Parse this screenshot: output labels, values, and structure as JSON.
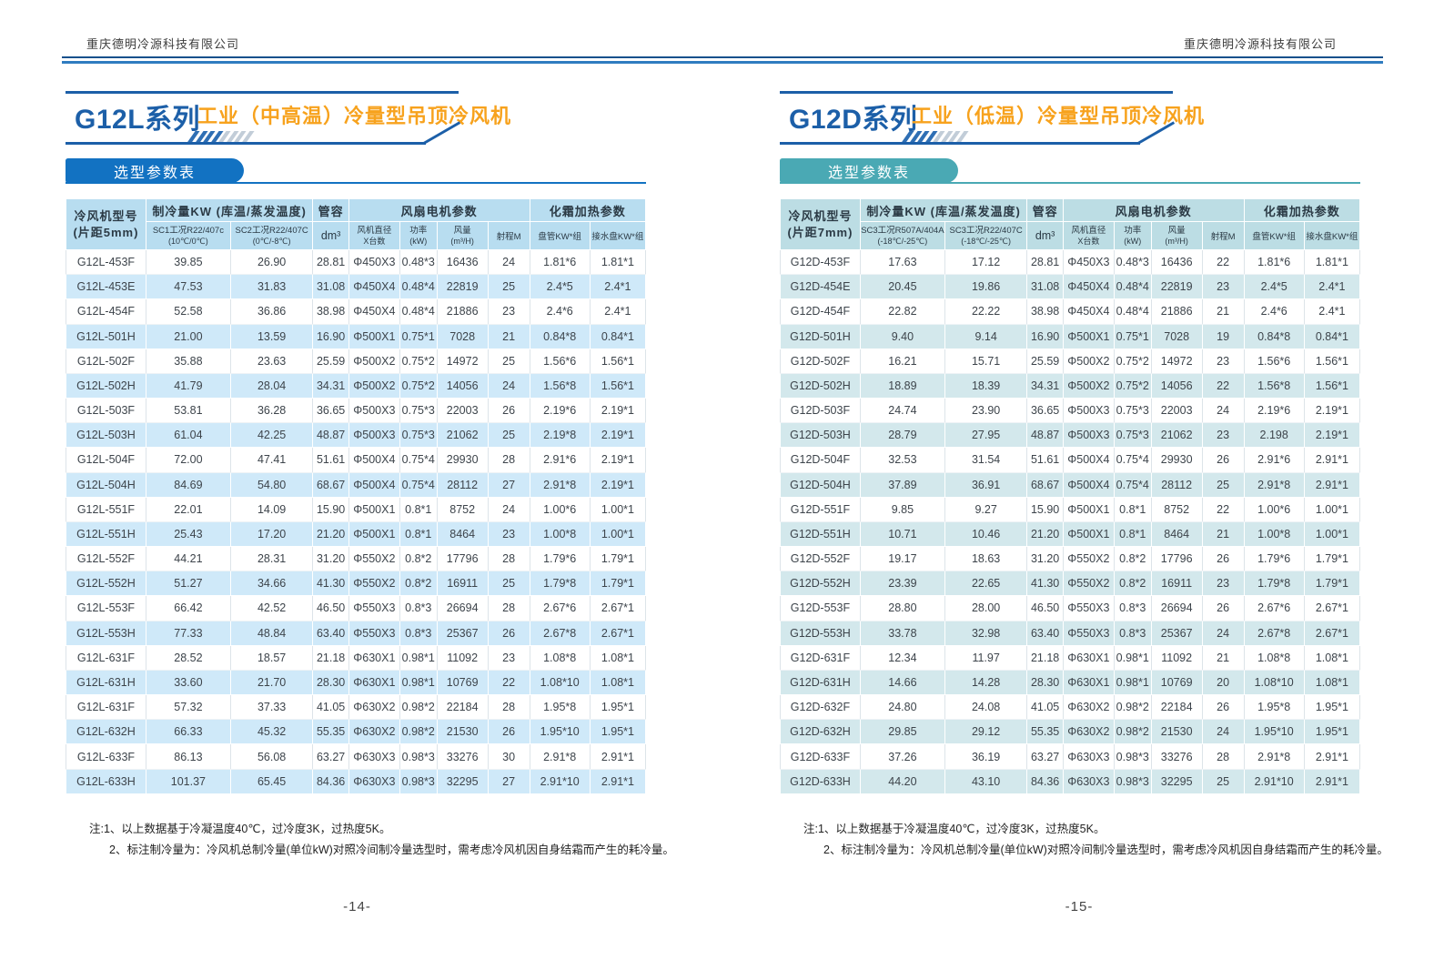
{
  "colors": {
    "brand_blue": "#1c5fa8",
    "brand_orange": "#f7a21d",
    "rule_dark": "#14508c",
    "rule_light": "#2f7cc0"
  },
  "pages": [
    {
      "company": "重庆德明冷源科技有限公司",
      "series": "G12L系列",
      "subtitle": "工业（中高温）冷量型吊顶冷风机",
      "section_tab": "选型参数表",
      "accent": "#1272c2",
      "thead": "#b8ddf0",
      "zebra": "#cfe9f9",
      "table": {
        "header": {
          "model": "冷风机型号",
          "model_sub": "(片距5mm)",
          "capacity_group": "制冷量KW (库温/蒸发温度)",
          "sc1": "SC1工况R22/407c",
          "sc1_temp": "(10℃/0℃)",
          "sc2": "SC2工况R22/407C",
          "sc2_temp": "(0℃/-8℃)",
          "volume": "管容",
          "volume_unit": "dm³",
          "fan_group": "风扇电机参数",
          "fan_dia_1": "风机直径",
          "fan_dia_2": "X台数",
          "power_1": "功率",
          "power_2": "(kW)",
          "airflow_1": "风量",
          "airflow_2": "(m³/H)",
          "range": "射程M",
          "defrost_group": "化霜加热参数",
          "coil": "盘管KW*组",
          "pan": "接水盘KW*组"
        },
        "rows": [
          [
            "G12L-453F",
            "39.85",
            "26.90",
            "28.81",
            "Φ450X3",
            "0.48*3",
            "16436",
            "24",
            "1.81*6",
            "1.81*1"
          ],
          [
            "G12L-453E",
            "47.53",
            "31.83",
            "31.08",
            "Φ450X4",
            "0.48*4",
            "22819",
            "25",
            "2.4*5",
            "2.4*1"
          ],
          [
            "G12L-454F",
            "52.58",
            "36.86",
            "38.98",
            "Φ450X4",
            "0.48*4",
            "21886",
            "23",
            "2.4*6",
            "2.4*1"
          ],
          [
            "G12L-501H",
            "21.00",
            "13.59",
            "16.90",
            "Φ500X1",
            "0.75*1",
            "7028",
            "21",
            "0.84*8",
            "0.84*1"
          ],
          [
            "G12L-502F",
            "35.88",
            "23.63",
            "25.59",
            "Φ500X2",
            "0.75*2",
            "14972",
            "25",
            "1.56*6",
            "1.56*1"
          ],
          [
            "G12L-502H",
            "41.79",
            "28.04",
            "34.31",
            "Φ500X2",
            "0.75*2",
            "14056",
            "24",
            "1.56*8",
            "1.56*1"
          ],
          [
            "G12L-503F",
            "53.81",
            "36.28",
            "36.65",
            "Φ500X3",
            "0.75*3",
            "22003",
            "26",
            "2.19*6",
            "2.19*1"
          ],
          [
            "G12L-503H",
            "61.04",
            "42.25",
            "48.87",
            "Φ500X3",
            "0.75*3",
            "21062",
            "25",
            "2.19*8",
            "2.19*1"
          ],
          [
            "G12L-504F",
            "72.00",
            "47.41",
            "51.61",
            "Φ500X4",
            "0.75*4",
            "29930",
            "28",
            "2.91*6",
            "2.19*1"
          ],
          [
            "G12L-504H",
            "84.69",
            "54.80",
            "68.67",
            "Φ500X4",
            "0.75*4",
            "28112",
            "27",
            "2.91*8",
            "2.19*1"
          ],
          [
            "G12L-551F",
            "22.01",
            "14.09",
            "15.90",
            "Φ500X1",
            "0.8*1",
            "8752",
            "24",
            "1.00*6",
            "1.00*1"
          ],
          [
            "G12L-551H",
            "25.43",
            "17.20",
            "21.20",
            "Φ500X1",
            "0.8*1",
            "8464",
            "23",
            "1.00*8",
            "1.00*1"
          ],
          [
            "G12L-552F",
            "44.21",
            "28.31",
            "31.20",
            "Φ550X2",
            "0.8*2",
            "17796",
            "28",
            "1.79*6",
            "1.79*1"
          ],
          [
            "G12L-552H",
            "51.27",
            "34.66",
            "41.30",
            "Φ550X2",
            "0.8*2",
            "16911",
            "25",
            "1.79*8",
            "1.79*1"
          ],
          [
            "G12L-553F",
            "66.42",
            "42.52",
            "46.50",
            "Φ550X3",
            "0.8*3",
            "26694",
            "28",
            "2.67*6",
            "2.67*1"
          ],
          [
            "G12L-553H",
            "77.33",
            "48.84",
            "63.40",
            "Φ550X3",
            "0.8*3",
            "25367",
            "26",
            "2.67*8",
            "2.67*1"
          ],
          [
            "G12L-631F",
            "28.52",
            "18.57",
            "21.18",
            "Φ630X1",
            "0.98*1",
            "11092",
            "23",
            "1.08*8",
            "1.08*1"
          ],
          [
            "G12L-631H",
            "33.60",
            "21.70",
            "28.30",
            "Φ630X1",
            "0.98*1",
            "10769",
            "22",
            "1.08*10",
            "1.08*1"
          ],
          [
            "G12L-631F",
            "57.32",
            "37.33",
            "41.05",
            "Φ630X2",
            "0.98*2",
            "22184",
            "28",
            "1.95*8",
            "1.95*1"
          ],
          [
            "G12L-632H",
            "66.33",
            "45.32",
            "55.35",
            "Φ630X2",
            "0.98*2",
            "21530",
            "26",
            "1.95*10",
            "1.95*1"
          ],
          [
            "G12L-633F",
            "86.13",
            "56.08",
            "63.27",
            "Φ630X3",
            "0.98*3",
            "33276",
            "30",
            "2.91*8",
            "2.91*1"
          ],
          [
            "G12L-633H",
            "101.37",
            "65.45",
            "84.36",
            "Φ630X3",
            "0.98*3",
            "32295",
            "27",
            "2.91*10",
            "2.91*1"
          ]
        ]
      },
      "notes": [
        "注:1、以上数据基于冷凝温度40℃，过冷度3K，过热度5K。",
        "2、标注制冷量为：冷风机总制冷量(单位kW)对照冷间制冷量选型时，需考虑冷风机因自身结霜而产生的耗冷量。"
      ],
      "page_number": "-14-"
    },
    {
      "company": "重庆德明冷源科技有限公司",
      "series": "G12D系列",
      "subtitle": "工业（低温）冷量型吊顶冷风机",
      "section_tab": "选型参数表",
      "accent": "#4aa9b4",
      "thead": "#bcdde4",
      "zebra": "#d3e8ec",
      "table": {
        "header": {
          "model": "冷风机型号",
          "model_sub": "(片距7mm)",
          "capacity_group": "制冷量KW (库温/蒸发温度)",
          "sc1": "SC3工况R507A/404A",
          "sc1_temp": "(-18℃/-25℃)",
          "sc2": "SC3工况R22/407C",
          "sc2_temp": "(-18℃/-25℃)",
          "volume": "管容",
          "volume_unit": "dm³",
          "fan_group": "风扇电机参数",
          "fan_dia_1": "风机直径",
          "fan_dia_2": "X台数",
          "power_1": "功率",
          "power_2": "(kW)",
          "airflow_1": "风量",
          "airflow_2": "(m³/H)",
          "range": "射程M",
          "defrost_group": "化霜加热参数",
          "coil": "盘管KW*组",
          "pan": "接水盘KW*组"
        },
        "rows": [
          [
            "G12D-453F",
            "17.63",
            "17.12",
            "28.81",
            "Φ450X3",
            "0.48*3",
            "16436",
            "22",
            "1.81*6",
            "1.81*1"
          ],
          [
            "G12D-454E",
            "20.45",
            "19.86",
            "31.08",
            "Φ450X4",
            "0.48*4",
            "22819",
            "23",
            "2.4*5",
            "2.4*1"
          ],
          [
            "G12D-454F",
            "22.82",
            "22.22",
            "38.98",
            "Φ450X4",
            "0.48*4",
            "21886",
            "21",
            "2.4*6",
            "2.4*1"
          ],
          [
            "G12D-501H",
            "9.40",
            "9.14",
            "16.90",
            "Φ500X1",
            "0.75*1",
            "7028",
            "19",
            "0.84*8",
            "0.84*1"
          ],
          [
            "G12D-502F",
            "16.21",
            "15.71",
            "25.59",
            "Φ500X2",
            "0.75*2",
            "14972",
            "23",
            "1.56*6",
            "1.56*1"
          ],
          [
            "G12D-502H",
            "18.89",
            "18.39",
            "34.31",
            "Φ500X2",
            "0.75*2",
            "14056",
            "22",
            "1.56*8",
            "1.56*1"
          ],
          [
            "G12D-503F",
            "24.74",
            "23.90",
            "36.65",
            "Φ500X3",
            "0.75*3",
            "22003",
            "24",
            "2.19*6",
            "2.19*1"
          ],
          [
            "G12D-503H",
            "28.79",
            "27.95",
            "48.87",
            "Φ500X3",
            "0.75*3",
            "21062",
            "23",
            "2.198",
            "2.19*1"
          ],
          [
            "G12D-504F",
            "32.53",
            "31.54",
            "51.61",
            "Φ500X4",
            "0.75*4",
            "29930",
            "26",
            "2.91*6",
            "2.91*1"
          ],
          [
            "G12D-504H",
            "37.89",
            "36.91",
            "68.67",
            "Φ500X4",
            "0.75*4",
            "28112",
            "25",
            "2.91*8",
            "2.91*1"
          ],
          [
            "G12D-551F",
            "9.85",
            "9.27",
            "15.90",
            "Φ500X1",
            "0.8*1",
            "8752",
            "22",
            "1.00*6",
            "1.00*1"
          ],
          [
            "G12D-551H",
            "10.71",
            "10.46",
            "21.20",
            "Φ500X1",
            "0.8*1",
            "8464",
            "21",
            "1.00*8",
            "1.00*1"
          ],
          [
            "G12D-552F",
            "19.17",
            "18.63",
            "31.20",
            "Φ550X2",
            "0.8*2",
            "17796",
            "26",
            "1.79*6",
            "1.79*1"
          ],
          [
            "G12D-552H",
            "23.39",
            "22.65",
            "41.30",
            "Φ550X2",
            "0.8*2",
            "16911",
            "23",
            "1.79*8",
            "1.79*1"
          ],
          [
            "G12D-553F",
            "28.80",
            "28.00",
            "46.50",
            "Φ550X3",
            "0.8*3",
            "26694",
            "26",
            "2.67*6",
            "2.67*1"
          ],
          [
            "G12D-553H",
            "33.78",
            "32.98",
            "63.40",
            "Φ550X3",
            "0.8*3",
            "25367",
            "24",
            "2.67*8",
            "2.67*1"
          ],
          [
            "G12D-631F",
            "12.34",
            "11.97",
            "21.18",
            "Φ630X1",
            "0.98*1",
            "11092",
            "21",
            "1.08*8",
            "1.08*1"
          ],
          [
            "G12D-631H",
            "14.66",
            "14.28",
            "28.30",
            "Φ630X1",
            "0.98*1",
            "10769",
            "20",
            "1.08*10",
            "1.08*1"
          ],
          [
            "G12D-632F",
            "24.80",
            "24.08",
            "41.05",
            "Φ630X2",
            "0.98*2",
            "22184",
            "26",
            "1.95*8",
            "1.95*1"
          ],
          [
            "G12D-632H",
            "29.85",
            "29.12",
            "55.35",
            "Φ630X2",
            "0.98*2",
            "21530",
            "24",
            "1.95*10",
            "1.95*1"
          ],
          [
            "G12D-633F",
            "37.26",
            "36.19",
            "63.27",
            "Φ630X3",
            "0.98*3",
            "33276",
            "28",
            "2.91*8",
            "2.91*1"
          ],
          [
            "G12D-633H",
            "44.20",
            "43.10",
            "84.36",
            "Φ630X3",
            "0.98*3",
            "32295",
            "25",
            "2.91*10",
            "2.91*1"
          ]
        ]
      },
      "notes": [
        "注:1、以上数据基于冷凝温度40℃，过冷度3K，过热度5K。",
        "2、标注制冷量为：冷风机总制冷量(单位kW)对照冷间制冷量选型时，需考虑冷风机因自身结霜而产生的耗冷量。"
      ],
      "page_number": "-15-"
    }
  ]
}
